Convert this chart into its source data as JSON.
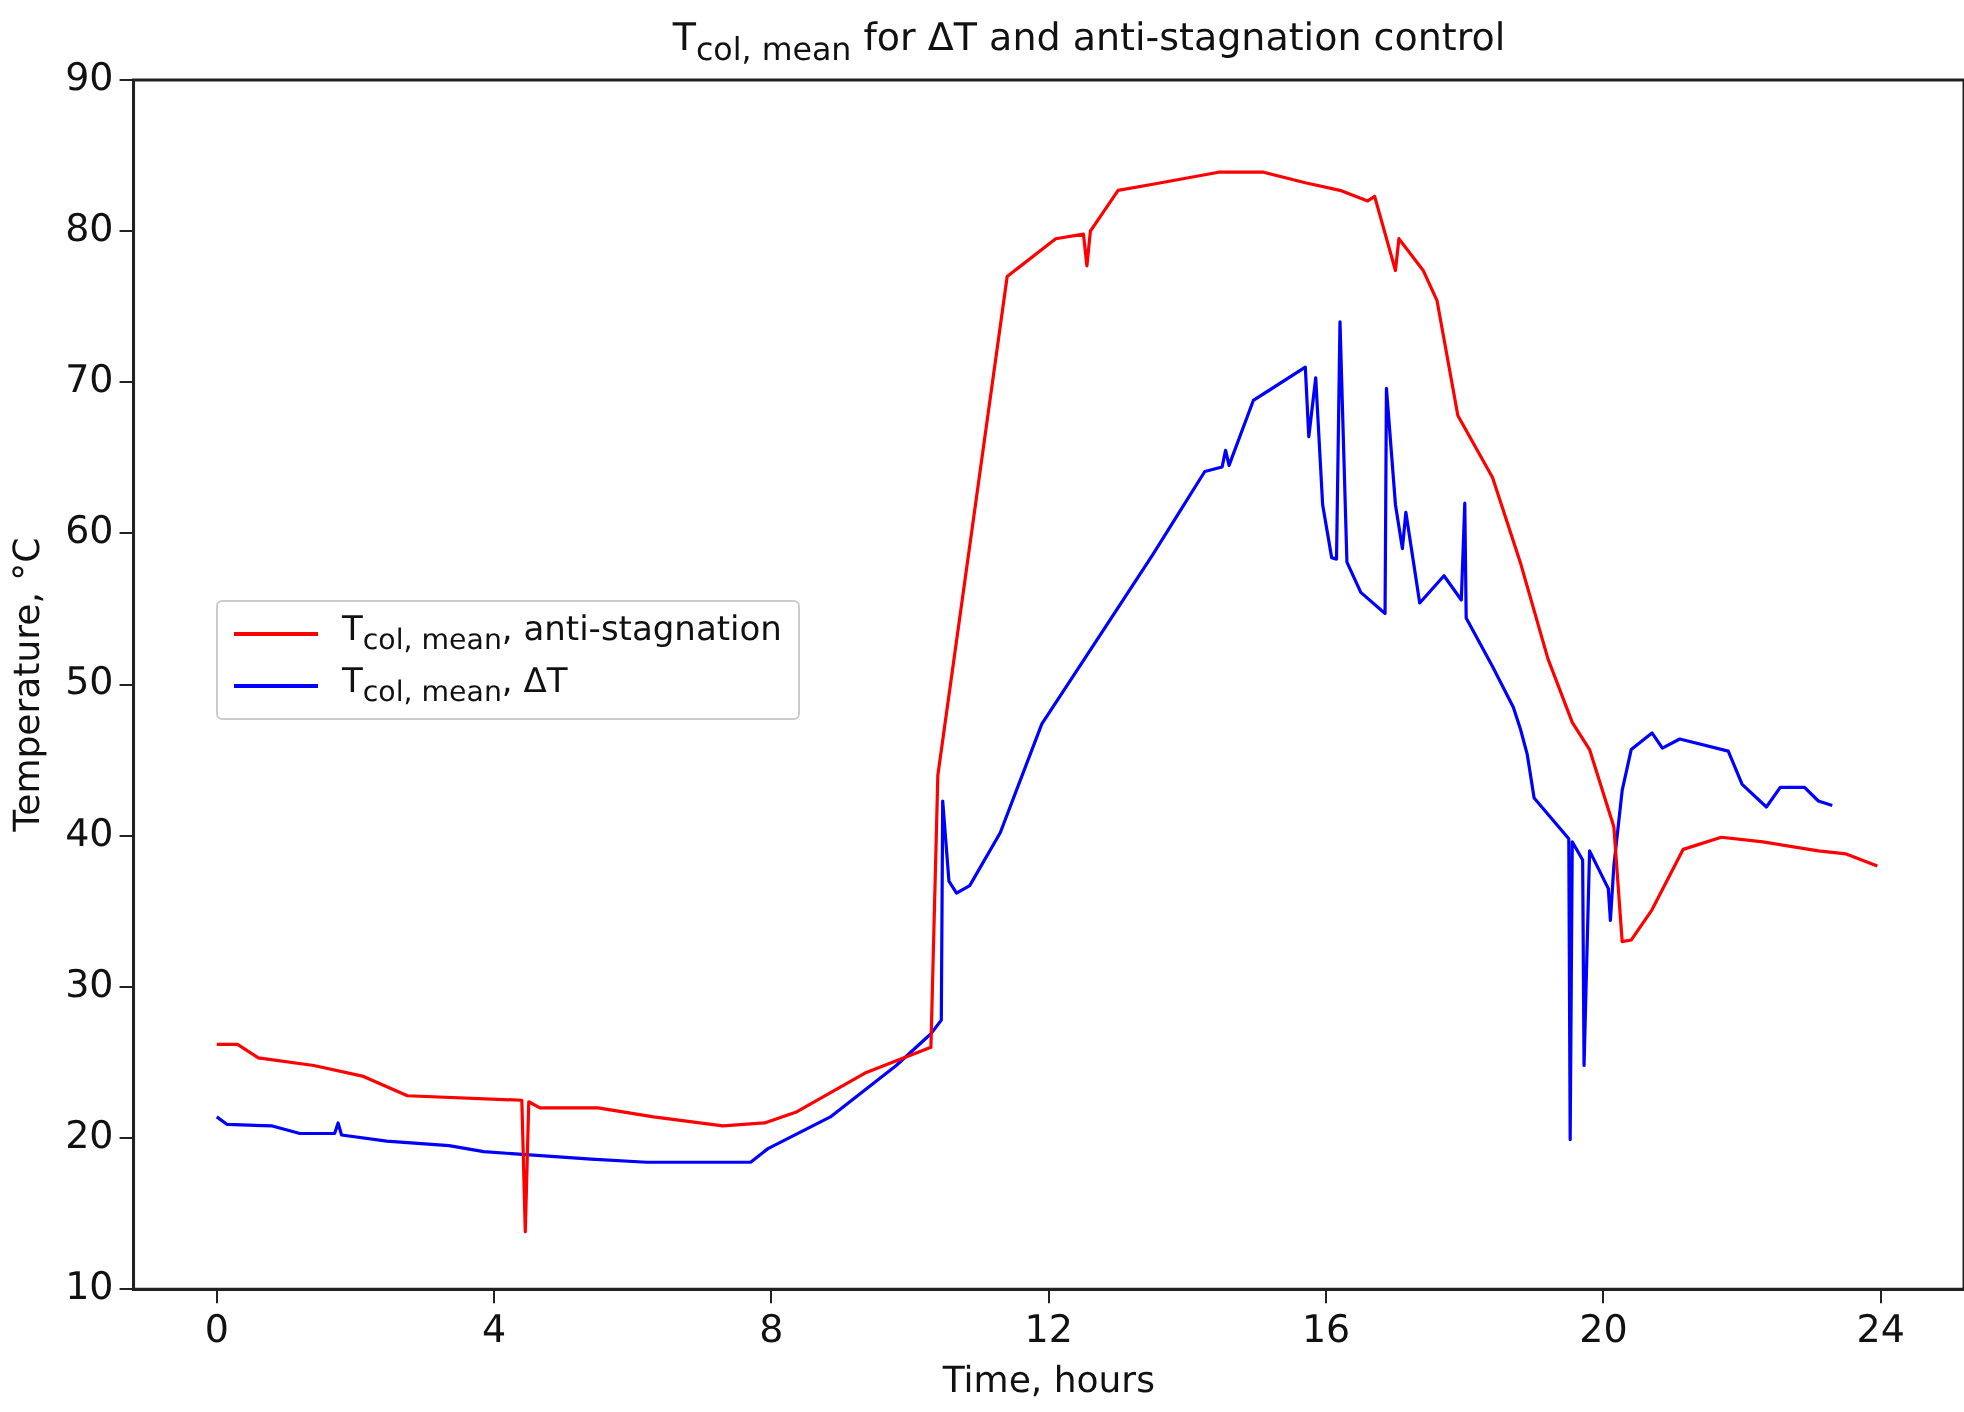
{
  "chart_data": {
    "type": "line",
    "title": "T$_{col, mean}$ for ΔT and anti-stagnation control",
    "xlabel": "Time, hours",
    "ylabel": "Temperature, °C",
    "xlim": [
      -1.2,
      25.2
    ],
    "xticks": [
      0,
      4,
      8,
      12,
      16,
      20,
      24
    ],
    "ylim": [
      10,
      90
    ],
    "yticks": [
      10,
      20,
      30,
      40,
      50,
      60,
      70,
      80,
      90
    ],
    "legend": "center left",
    "marker": "none",
    "line_style": "solid",
    "series": [
      {
        "name": "T$_{col, mean}$, anti-stagnation",
        "color": "#ff0000",
        "x": [
          0,
          0.3,
          0.6,
          1.4,
          2.1,
          2.75,
          4.4,
          4.45,
          4.5,
          4.66,
          5.5,
          6.3,
          7.3,
          7.9,
          8.35,
          9.35,
          10.3,
          10.4,
          11.4,
          12.1,
          12.5,
          12.55,
          12.6,
          13.0,
          13.5,
          14.45,
          15.1,
          15.7,
          16.2,
          16.6,
          16.7,
          17.0,
          17.05,
          17.4,
          17.6,
          17.9,
          18.4,
          18.8,
          19.2,
          19.55,
          19.8,
          20.15,
          20.27,
          20.4,
          20.7,
          21.15,
          21.7,
          22.3,
          23.1,
          23.5,
          23.95
        ],
        "values": [
          26.2,
          26.2,
          25.3,
          24.8,
          24.1,
          22.8,
          22.5,
          13.8,
          22.4,
          22.0,
          22.0,
          21.4,
          20.8,
          21.0,
          21.7,
          24.3,
          26.0,
          44,
          77.0,
          79.5,
          79.8,
          77.7,
          80.0,
          82.7,
          83.1,
          83.9,
          83.9,
          83.2,
          82.7,
          82.0,
          82.3,
          77.4,
          79.5,
          77.4,
          75.4,
          67.8,
          63.7,
          58.1,
          51.7,
          47.5,
          45.7,
          40.6,
          33.0,
          33.1,
          35.1,
          39.1,
          39.9,
          39.6,
          39.0,
          38.8,
          38.0
        ]
      },
      {
        "name": "T$_{col, mean}$, ΔT",
        "color": "#0000ff",
        "x": [
          0,
          0.15,
          0.8,
          1.2,
          1.7,
          1.75,
          1.8,
          2.45,
          3.35,
          3.85,
          5.4,
          6.2,
          7.7,
          7.95,
          8.85,
          9.8,
          10.3,
          10.45,
          10.47,
          10.56,
          10.67,
          10.86,
          11.3,
          11.9,
          12.7,
          13.5,
          14.25,
          14.5,
          14.55,
          14.6,
          14.95,
          15.7,
          15.75,
          15.85,
          15.95,
          16.08,
          16.15,
          16.2,
          16.3,
          16.5,
          16.85,
          16.87,
          17.0,
          17.1,
          17.15,
          17.35,
          17.7,
          17.95,
          18.0,
          18.02,
          18.4,
          18.7,
          18.8,
          18.9,
          19.0,
          19.5,
          19.52,
          19.55,
          19.7,
          19.72,
          19.8,
          20.07,
          20.1,
          20.15,
          20.27,
          20.4,
          20.7,
          20.85,
          21.1,
          21.8,
          22.0,
          22.35,
          22.55,
          22.9,
          23.1,
          23.3
        ],
        "values": [
          21.4,
          20.9,
          20.8,
          20.3,
          20.3,
          21.0,
          20.2,
          19.8,
          19.5,
          19.1,
          18.6,
          18.4,
          18.4,
          19.3,
          21.4,
          24.8,
          26.9,
          27.8,
          42.3,
          37.0,
          36.2,
          36.7,
          40.2,
          47.4,
          53.0,
          58.6,
          64.1,
          64.4,
          65.5,
          64.5,
          68.8,
          71.0,
          66.4,
          70.3,
          61.9,
          58.4,
          58.3,
          74.0,
          58.1,
          56.1,
          54.7,
          69.6,
          61.9,
          59.0,
          61.4,
          55.4,
          57.2,
          55.6,
          62.0,
          54.4,
          51.2,
          48.5,
          47.1,
          45.4,
          42.5,
          39.8,
          19.9,
          39.6,
          38.4,
          24.8,
          39.0,
          36.5,
          34.4,
          38.0,
          43.0,
          45.7,
          46.8,
          45.8,
          46.4,
          45.6,
          43.4,
          41.9,
          43.2,
          43.2,
          42.3,
          42.0
        ]
      }
    ]
  }
}
